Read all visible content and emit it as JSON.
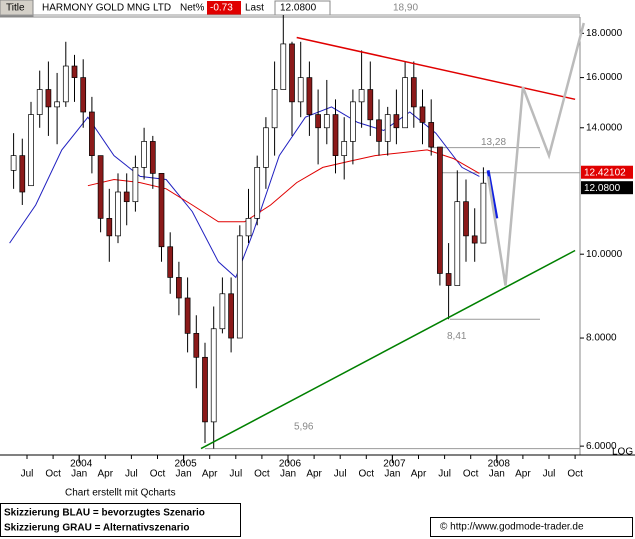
{
  "chart_data": {
    "type": "candlestick",
    "log_scale": true,
    "header": {
      "title_tab": "Title",
      "name": "HARMONY GOLD MNG LTD",
      "net_label": "Net%",
      "net_value": -0.73,
      "last_label": "Last",
      "last_value": {
        "value": 12.08,
        "label": "12.0800"
      }
    },
    "categories": [
      "2003-05",
      "2003-06",
      "2003-07",
      "2003-08",
      "2003-09",
      "2003-10",
      "2003-11",
      "2003-12",
      "2004-01",
      "2004-02",
      "2004-03",
      "2004-04",
      "2004-05",
      "2004-06",
      "2004-07",
      "2004-08",
      "2004-09",
      "2004-10",
      "2004-11",
      "2004-12",
      "2005-01",
      "2005-02",
      "2005-03",
      "2005-04",
      "2005-05",
      "2005-06",
      "2005-07",
      "2005-08",
      "2005-09",
      "2005-10",
      "2005-11",
      "2005-12",
      "2006-01",
      "2006-02",
      "2006-03",
      "2006-04",
      "2006-05",
      "2006-06",
      "2006-07",
      "2006-08",
      "2006-09",
      "2006-10",
      "2006-11",
      "2006-12",
      "2007-01",
      "2007-02",
      "2007-03",
      "2007-04",
      "2007-05",
      "2007-06",
      "2007-07",
      "2007-08",
      "2007-09",
      "2007-10",
      "2007-11"
    ],
    "ohlc": [
      [
        12.5,
        13.8,
        11.9,
        13.0
      ],
      [
        13.0,
        13.6,
        11.4,
        11.8
      ],
      [
        12.0,
        15.0,
        12.0,
        14.5
      ],
      [
        14.5,
        16.3,
        14.0,
        15.5
      ],
      [
        15.5,
        16.7,
        13.7,
        14.8
      ],
      [
        14.8,
        16.2,
        13.4,
        15.0
      ],
      [
        15.0,
        17.6,
        14.8,
        16.5
      ],
      [
        16.5,
        17.0,
        15.0,
        16.0
      ],
      [
        16.0,
        16.8,
        14.0,
        14.6
      ],
      [
        14.6,
        15.2,
        12.4,
        13.0
      ],
      [
        13.0,
        13.0,
        10.6,
        11.0
      ],
      [
        11.0,
        11.9,
        9.8,
        10.5
      ],
      [
        10.5,
        12.4,
        10.3,
        11.8
      ],
      [
        11.8,
        12.4,
        10.8,
        11.5
      ],
      [
        11.5,
        13.0,
        11.2,
        12.6
      ],
      [
        12.6,
        14.0,
        12.2,
        13.5
      ],
      [
        13.5,
        13.7,
        11.9,
        12.4
      ],
      [
        12.4,
        12.4,
        9.8,
        10.2
      ],
      [
        10.2,
        10.6,
        9.0,
        9.4
      ],
      [
        9.4,
        9.8,
        8.5,
        8.9
      ],
      [
        8.9,
        9.4,
        7.7,
        8.1
      ],
      [
        8.1,
        8.5,
        7.0,
        7.6
      ],
      [
        7.6,
        7.9,
        6.05,
        6.4
      ],
      [
        6.4,
        8.7,
        5.96,
        8.2
      ],
      [
        8.2,
        9.4,
        8.1,
        9.0
      ],
      [
        9.0,
        9.4,
        7.7,
        8.0
      ],
      [
        8.0,
        10.8,
        8.0,
        10.5
      ],
      [
        10.5,
        11.9,
        10.3,
        11.0
      ],
      [
        11.0,
        13.0,
        10.8,
        12.6
      ],
      [
        12.6,
        14.4,
        11.9,
        14.0
      ],
      [
        14.0,
        16.7,
        13.0,
        15.5
      ],
      [
        15.5,
        18.9,
        15.5,
        17.5
      ],
      [
        17.5,
        17.6,
        13.7,
        15.0
      ],
      [
        15.0,
        17.6,
        14.4,
        16.0
      ],
      [
        16.0,
        16.7,
        13.7,
        14.5
      ],
      [
        14.5,
        15.5,
        12.7,
        14.0
      ],
      [
        14.0,
        15.9,
        13.4,
        14.5
      ],
      [
        14.5,
        15.1,
        12.4,
        13.0
      ],
      [
        13.0,
        14.4,
        12.2,
        13.5
      ],
      [
        13.5,
        15.5,
        12.7,
        15.0
      ],
      [
        15.0,
        17.2,
        14.0,
        15.5
      ],
      [
        15.5,
        16.7,
        13.7,
        14.3
      ],
      [
        14.3,
        15.1,
        13.0,
        13.5
      ],
      [
        13.5,
        14.8,
        13.0,
        14.5
      ],
      [
        14.5,
        15.5,
        13.4,
        14.0
      ],
      [
        14.0,
        16.7,
        14.0,
        16.0
      ],
      [
        16.0,
        16.7,
        14.0,
        14.8
      ],
      [
        14.8,
        15.5,
        13.4,
        14.2
      ],
      [
        14.2,
        15.1,
        13.0,
        13.3
      ],
      [
        13.3,
        13.28,
        9.2,
        9.5
      ],
      [
        9.5,
        10.3,
        8.41,
        9.2
      ],
      [
        9.2,
        12.5,
        9.2,
        11.5
      ],
      [
        11.5,
        12.2,
        9.8,
        10.5
      ],
      [
        10.5,
        11.3,
        9.8,
        10.3
      ],
      [
        10.3,
        12.6,
        10.3,
        12.08
      ]
    ],
    "up_color": "#ffffff",
    "down_color": "#8b1a1a",
    "lines": [
      {
        "color": "#2020c0",
        "x": [
          "2003-05",
          "2003-08",
          "2003-11",
          "2004-02",
          "2004-05",
          "2004-08",
          "2004-11",
          "2005-02",
          "2005-05",
          "2005-07",
          "2005-09",
          "2005-12",
          "2006-03",
          "2006-06",
          "2006-09",
          "2006-12",
          "2007-03",
          "2007-06",
          "2007-09",
          "2007-11"
        ],
        "values": [
          10.3,
          11.4,
          13.2,
          14.4,
          13.0,
          12.3,
          12.2,
          11.2,
          9.8,
          9.4,
          10.6,
          13.0,
          14.4,
          14.8,
          14.2,
          13.9,
          14.6,
          13.8,
          12.6,
          12.3
        ]
      },
      {
        "color": "#e00000",
        "x": [
          "2004-02",
          "2004-05",
          "2004-08",
          "2004-11",
          "2005-02",
          "2005-05",
          "2005-08",
          "2005-11",
          "2006-02",
          "2006-05",
          "2006-08",
          "2006-11",
          "2007-02",
          "2007-05",
          "2007-08",
          "2007-11"
        ],
        "values": [
          12.0,
          12.2,
          12.1,
          11.9,
          11.4,
          10.9,
          10.9,
          11.4,
          12.1,
          12.6,
          12.8,
          13.0,
          13.1,
          13.2,
          12.9,
          12.4
        ]
      }
    ],
    "trendlines": [
      {
        "color": "#e00000",
        "x": [
          "2006-02",
          "2008-10"
        ],
        "values": [
          17.8,
          15.1
        ]
      },
      {
        "color": "#008000",
        "x": [
          "2005-03",
          "2008-10"
        ],
        "values": [
          5.96,
          10.1
        ]
      },
      {
        "color": "#1020e0",
        "x": [
          "2007-12",
          "2008-01"
        ],
        "values": [
          12.5,
          11.0
        ]
      },
      {
        "color": "#bbbbbb",
        "x": [
          "2007-12",
          "2008-02",
          "2008-04",
          "2008-07",
          "2008-11"
        ],
        "values": [
          12.3,
          9.2,
          15.6,
          13.0,
          18.5
        ]
      }
    ],
    "levels": [
      {
        "value": 18.9,
        "label": "18,90"
      },
      {
        "value": 13.28,
        "label": "13,28"
      },
      {
        "value": 8.41,
        "label": "8,41"
      },
      {
        "value": 5.96,
        "label": "5,96"
      }
    ],
    "level_marker": 12.42102,
    "ylim": [
      5.86,
      18.8
    ],
    "yticks": [
      {
        "value": 6,
        "label": "6.0000"
      },
      {
        "value": 8,
        "label": "8.0000"
      },
      {
        "value": 10,
        "label": "10.0000"
      },
      {
        "value": 14,
        "label": "14.0000"
      },
      {
        "value": 16,
        "label": "16.0000"
      },
      {
        "value": 18,
        "label": "18.0000"
      }
    ],
    "xticks": [
      {
        "value": "2003-07",
        "label": "Jul"
      },
      {
        "value": "2003-10",
        "label": "Oct"
      },
      {
        "value": "2004-01",
        "label": "Jan"
      },
      {
        "value": "2004-04",
        "label": "Apr"
      },
      {
        "value": "2004-07",
        "label": "Jul"
      },
      {
        "value": "2004-10",
        "label": "Oct"
      },
      {
        "value": "2005-01",
        "label": "Jan"
      },
      {
        "value": "2005-04",
        "label": "Apr"
      },
      {
        "value": "2005-07",
        "label": "Jul"
      },
      {
        "value": "2005-10",
        "label": "Oct"
      },
      {
        "value": "2006-01",
        "label": "Jan"
      },
      {
        "value": "2006-04",
        "label": "Apr"
      },
      {
        "value": "2006-07",
        "label": "Jul"
      },
      {
        "value": "2006-10",
        "label": "Oct"
      },
      {
        "value": "2007-01",
        "label": "Jan"
      },
      {
        "value": "2007-04",
        "label": "Apr"
      },
      {
        "value": "2007-07",
        "label": "Jul"
      },
      {
        "value": "2007-10",
        "label": "Oct"
      },
      {
        "value": "2008-01",
        "label": "Jan"
      },
      {
        "value": "2008-04",
        "label": "Apr"
      },
      {
        "value": "2008-07",
        "label": "Jul"
      },
      {
        "value": "2008-10",
        "label": "Oct"
      }
    ],
    "year_ticks": [
      {
        "value": "2004-01",
        "label": "2004"
      },
      {
        "value": "2005-01",
        "label": "2005"
      },
      {
        "value": "2006-01",
        "label": "2006"
      },
      {
        "value": "2007-01",
        "label": "2007"
      },
      {
        "value": "2008-01",
        "label": "2008"
      }
    ],
    "scale_label": "LOG",
    "credit": "Chart erstellt mit Qcharts",
    "legend_lines": [
      "Skizzierung BLAU = bevorzugtes Szenario",
      "Skizzierung GRAU = Alternativszenario"
    ],
    "source": "© http://www.godmode-trader.de"
  }
}
